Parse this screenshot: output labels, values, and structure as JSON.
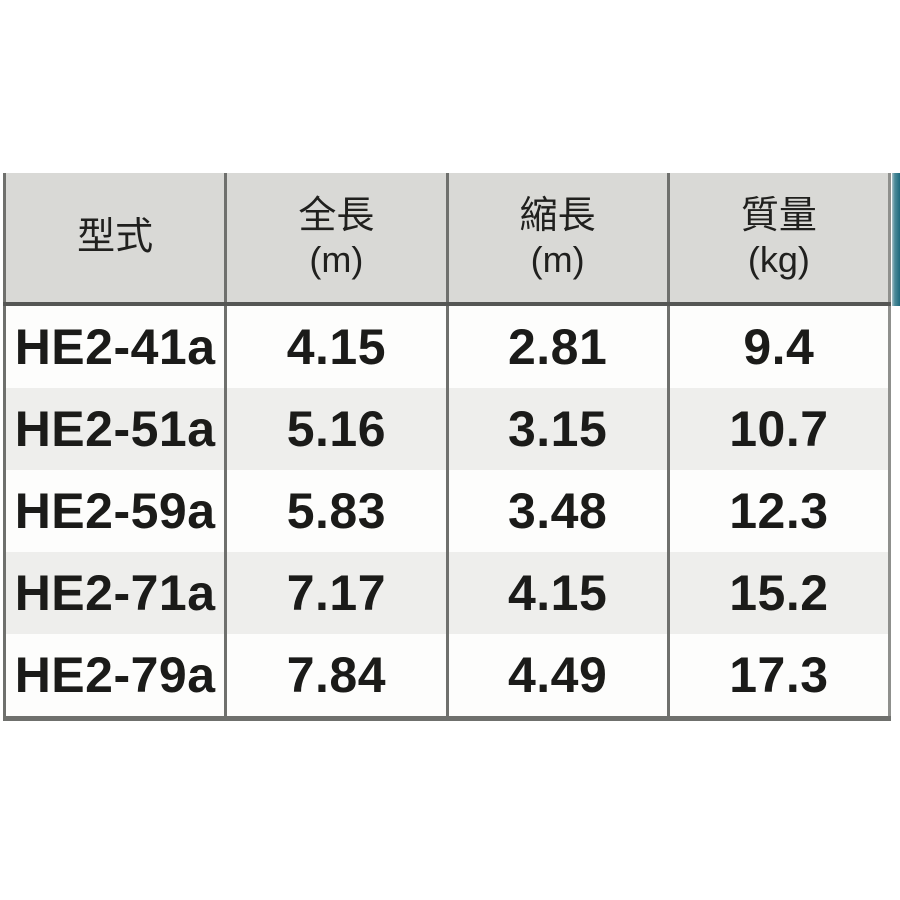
{
  "table": {
    "columns": [
      {
        "label": "型式",
        "unit": ""
      },
      {
        "label": "全長",
        "unit": "(m)"
      },
      {
        "label": "縮長",
        "unit": "(m)"
      },
      {
        "label": "質量",
        "unit": "(kg)"
      }
    ],
    "rows": [
      {
        "model": "HE2-41a",
        "full_length_m": "4.15",
        "collapsed_length_m": "2.81",
        "weight_kg": "9.4"
      },
      {
        "model": "HE2-51a",
        "full_length_m": "5.16",
        "collapsed_length_m": "3.15",
        "weight_kg": "10.7"
      },
      {
        "model": "HE2-59a",
        "full_length_m": "5.83",
        "collapsed_length_m": "3.48",
        "weight_kg": "12.3"
      },
      {
        "model": "HE2-71a",
        "full_length_m": "7.17",
        "collapsed_length_m": "4.15",
        "weight_kg": "15.2"
      },
      {
        "model": "HE2-79a",
        "full_length_m": "7.84",
        "collapsed_length_m": "4.49",
        "weight_kg": "17.3"
      }
    ]
  },
  "colors": {
    "header_bg": "#d9d9d6",
    "row_white": "#fdfdfc",
    "row_gray": "#eeeeec",
    "line_color": "#6f706d",
    "line_light": "#8f908d",
    "header_line": "#555654",
    "accent_teal": "#1e6a7e",
    "text_color": "#1b1b19"
  }
}
